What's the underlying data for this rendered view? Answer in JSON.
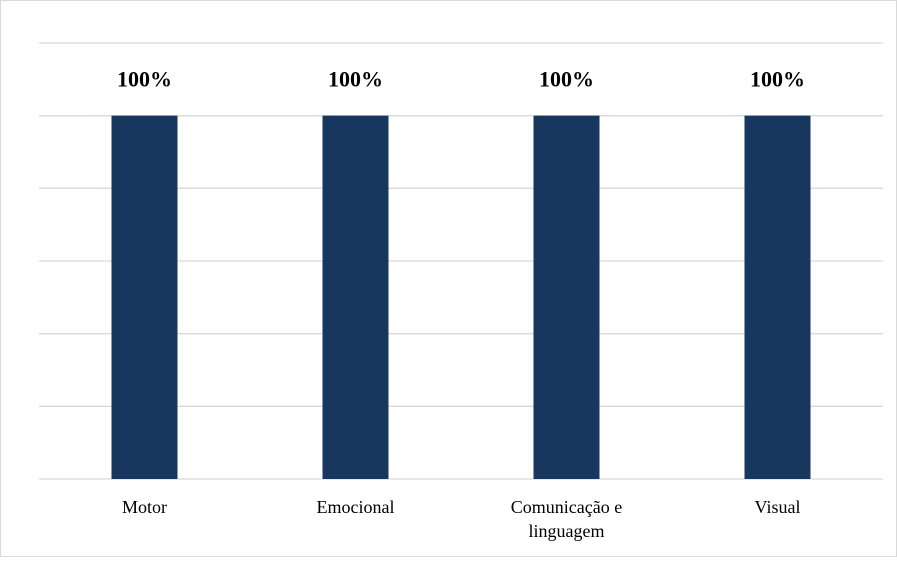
{
  "chart_data": {
    "type": "bar",
    "categories": [
      "Motor",
      "Emocional",
      "Comunicação e linguagem",
      "Visual"
    ],
    "category_lines": [
      [
        "Motor"
      ],
      [
        "Emocional"
      ],
      [
        "Comunicação e",
        "linguagem"
      ],
      [
        "Visual"
      ]
    ],
    "values": [
      100,
      100,
      100,
      100
    ],
    "data_labels": [
      "100%",
      "100%",
      "100%",
      "100%"
    ],
    "ylim": [
      0,
      120
    ],
    "gridline_step": 20,
    "grid": true,
    "legend": "none",
    "bar_color": "#17375e",
    "grid_color": "#d9d9d9"
  }
}
